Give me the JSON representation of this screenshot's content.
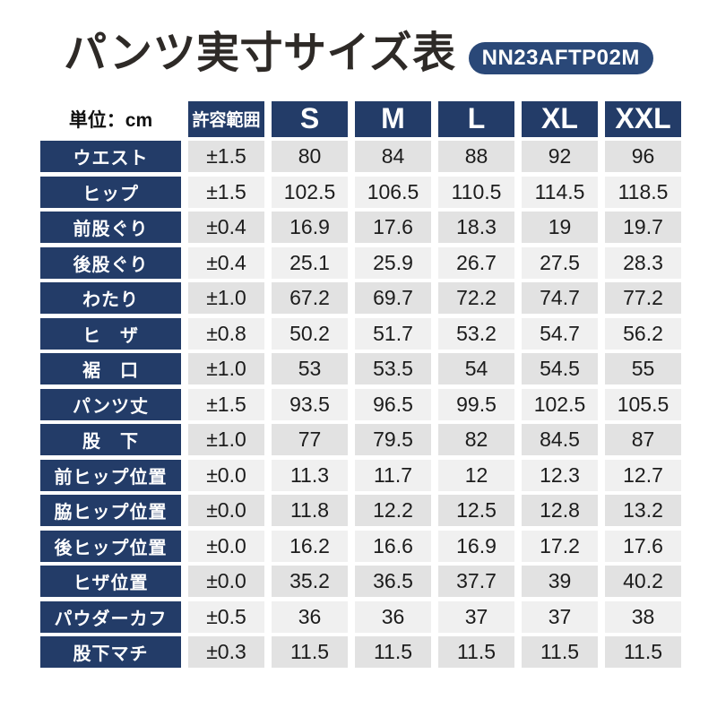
{
  "page": {
    "title": "パンツ実寸サイズ表",
    "model_badge": "NN23AFTP02M",
    "unit_label": "単位：cm"
  },
  "colors": {
    "table_navy": "#233c68",
    "badge_navy": "#2a4878",
    "row_stripe_dark": "#e2e2e2",
    "row_stripe_light": "#f0f0f0",
    "title_color": "#2e2a27"
  },
  "chart_data": {
    "type": "table",
    "title": "パンツ実寸サイズ表",
    "model": "NN23AFTP02M",
    "unit": "cm",
    "columns": [
      "許容範囲",
      "S",
      "M",
      "L",
      "XL",
      "XXL"
    ],
    "rows": [
      {
        "label": "ウエスト",
        "values": [
          "±1.5",
          "80",
          "84",
          "88",
          "92",
          "96"
        ]
      },
      {
        "label": "ヒップ",
        "values": [
          "±1.5",
          "102.5",
          "106.5",
          "110.5",
          "114.5",
          "118.5"
        ]
      },
      {
        "label": "前股ぐり",
        "values": [
          "±0.4",
          "16.9",
          "17.6",
          "18.3",
          "19",
          "19.7"
        ]
      },
      {
        "label": "後股ぐり",
        "values": [
          "±0.4",
          "25.1",
          "25.9",
          "26.7",
          "27.5",
          "28.3"
        ]
      },
      {
        "label": "わたり",
        "values": [
          "±1.0",
          "67.2",
          "69.7",
          "72.2",
          "74.7",
          "77.2"
        ]
      },
      {
        "label": "ヒ　ザ",
        "values": [
          "±0.8",
          "50.2",
          "51.7",
          "53.2",
          "54.7",
          "56.2"
        ]
      },
      {
        "label": "裾　口",
        "values": [
          "±1.0",
          "53",
          "53.5",
          "54",
          "54.5",
          "55"
        ]
      },
      {
        "label": "パンツ丈",
        "values": [
          "±1.5",
          "93.5",
          "96.5",
          "99.5",
          "102.5",
          "105.5"
        ]
      },
      {
        "label": "股　下",
        "values": [
          "±1.0",
          "77",
          "79.5",
          "82",
          "84.5",
          "87"
        ]
      },
      {
        "label": "前ヒップ位置",
        "values": [
          "±0.0",
          "11.3",
          "11.7",
          "12",
          "12.3",
          "12.7"
        ]
      },
      {
        "label": "脇ヒップ位置",
        "values": [
          "±0.0",
          "11.8",
          "12.2",
          "12.5",
          "12.8",
          "13.2"
        ]
      },
      {
        "label": "後ヒップ位置",
        "values": [
          "±0.0",
          "16.2",
          "16.6",
          "16.9",
          "17.2",
          "17.6"
        ]
      },
      {
        "label": "ヒザ位置",
        "values": [
          "±0.0",
          "35.2",
          "36.5",
          "37.7",
          "39",
          "40.2"
        ]
      },
      {
        "label": "パウダーカフ",
        "values": [
          "±0.5",
          "36",
          "36",
          "37",
          "37",
          "38"
        ]
      },
      {
        "label": "股下マチ",
        "values": [
          "±0.3",
          "11.5",
          "11.5",
          "11.5",
          "11.5",
          "11.5"
        ]
      }
    ]
  }
}
